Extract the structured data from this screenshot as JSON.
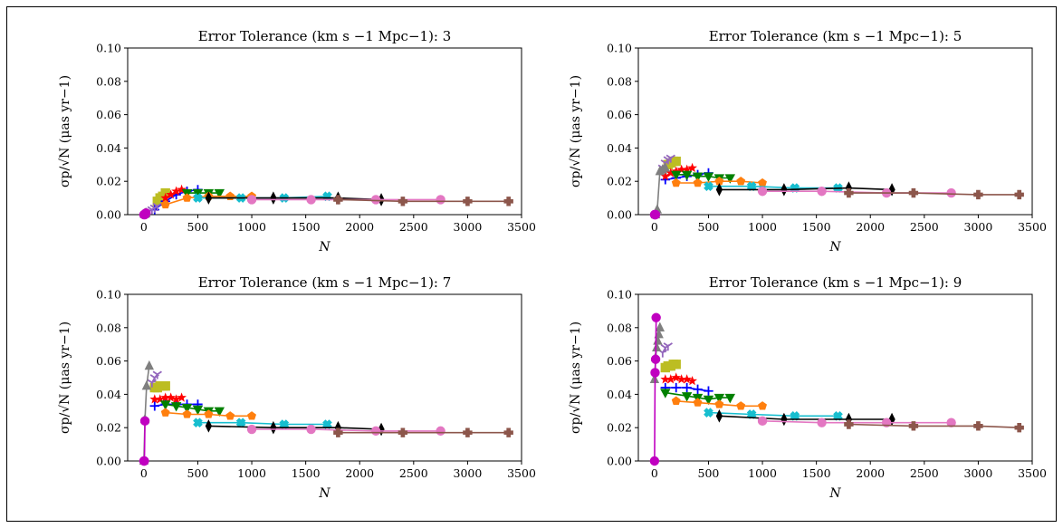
{
  "chart_data": [
    {
      "type": "line",
      "title": "Error Tolerance (km s −1 Mpc−1): 3",
      "xlabel": "N",
      "ylabel": "σp/√N (μas yr−1)",
      "xlim": [
        -150,
        3500
      ],
      "ylim": [
        0,
        0.1
      ],
      "xticks": [
        "0",
        "500",
        "1000",
        "1500",
        "2000",
        "2500",
        "3000",
        "3500"
      ],
      "yticks": [
        "0.00",
        "0.02",
        "0.04",
        "0.06",
        "0.08",
        "0.10"
      ],
      "series": [
        {
          "color": "#bcbd22",
          "marker": "square",
          "x": [
            125,
            150,
            175,
            200
          ],
          "y": [
            0.008,
            0.01,
            0.011,
            0.013
          ]
        },
        {
          "color": "#0000ff",
          "marker": "plus",
          "x": [
            100,
            200,
            300,
            400,
            500
          ],
          "y": [
            0.003,
            0.008,
            0.012,
            0.014,
            0.015
          ]
        },
        {
          "color": "#ff0000",
          "marker": "star",
          "x": [
            200,
            250,
            300,
            350
          ],
          "y": [
            0.01,
            0.012,
            0.014,
            0.015
          ]
        },
        {
          "color": "#9467bd",
          "marker": "tri_down",
          "x": [
            25,
            50,
            75,
            100,
            125
          ],
          "y": [
            0.001,
            0.002,
            0.003,
            0.004,
            0.005
          ]
        },
        {
          "color": "#008000",
          "marker": "triangle_down",
          "x": [
            400,
            500,
            600,
            700
          ],
          "y": [
            0.013,
            0.013,
            0.013,
            0.013
          ]
        },
        {
          "color": "#ff7f0e",
          "marker": "pentagon",
          "x": [
            200,
            400,
            600,
            800,
            1000
          ],
          "y": [
            0.006,
            0.01,
            0.011,
            0.011,
            0.011
          ]
        },
        {
          "color": "#17becf",
          "marker": "x_filled",
          "x": [
            500,
            900,
            1300,
            1700
          ],
          "y": [
            0.01,
            0.01,
            0.01,
            0.011
          ]
        },
        {
          "color": "#000000",
          "marker": "diamond",
          "x": [
            600,
            1200,
            1800,
            2200
          ],
          "y": [
            0.01,
            0.01,
            0.01,
            0.009
          ]
        },
        {
          "color": "#7f7f7f",
          "marker": "triangle_up",
          "x": [
            5,
            10,
            15,
            20
          ],
          "y": [
            0.0003,
            0.0005,
            0.0007,
            0.001
          ]
        },
        {
          "color": "#e377c2",
          "marker": "circle",
          "x": [
            1000,
            1550,
            2150,
            2750
          ],
          "y": [
            0.009,
            0.009,
            0.009,
            0.009
          ]
        },
        {
          "color": "#c000c0",
          "marker": "circle",
          "x": [
            0,
            10,
            20
          ],
          "y": [
            0.0,
            0.0,
            0.001
          ]
        },
        {
          "color": "#8c564b",
          "marker": "plus_filled",
          "x": [
            1800,
            2400,
            3000,
            3380
          ],
          "y": [
            0.009,
            0.008,
            0.008,
            0.008
          ]
        }
      ]
    },
    {
      "type": "line",
      "title": "Error Tolerance (km s −1 Mpc−1): 5",
      "xlabel": "N",
      "ylabel": "σp/√N (μas yr−1)",
      "xlim": [
        -150,
        3500
      ],
      "ylim": [
        0,
        0.1
      ],
      "xticks": [
        "0",
        "500",
        "1000",
        "1500",
        "2000",
        "2500",
        "3000",
        "3500"
      ],
      "yticks": [
        "0.00",
        "0.02",
        "0.04",
        "0.06",
        "0.08",
        "0.10"
      ],
      "series": [
        {
          "color": "#bcbd22",
          "marker": "square",
          "x": [
            125,
            150,
            175,
            200
          ],
          "y": [
            0.03,
            0.031,
            0.032,
            0.032
          ]
        },
        {
          "color": "#0000ff",
          "marker": "plus",
          "x": [
            100,
            200,
            300,
            400,
            500
          ],
          "y": [
            0.021,
            0.022,
            0.023,
            0.024,
            0.025
          ]
        },
        {
          "color": "#ff0000",
          "marker": "star",
          "x": [
            100,
            150,
            200,
            250,
            300,
            350
          ],
          "y": [
            0.023,
            0.025,
            0.026,
            0.027,
            0.027,
            0.028
          ]
        },
        {
          "color": "#9467bd",
          "marker": "tri_down",
          "x": [
            75,
            100,
            125,
            150
          ],
          "y": [
            0.028,
            0.031,
            0.033,
            0.034
          ]
        },
        {
          "color": "#008000",
          "marker": "triangle_down",
          "x": [
            200,
            300,
            400,
            500,
            600,
            700
          ],
          "y": [
            0.024,
            0.024,
            0.023,
            0.023,
            0.022,
            0.022
          ]
        },
        {
          "color": "#ff7f0e",
          "marker": "pentagon",
          "x": [
            200,
            400,
            600,
            800,
            1000
          ],
          "y": [
            0.019,
            0.019,
            0.02,
            0.02,
            0.019
          ]
        },
        {
          "color": "#17becf",
          "marker": "x_filled",
          "x": [
            500,
            900,
            1300,
            1700
          ],
          "y": [
            0.017,
            0.017,
            0.016,
            0.016
          ]
        },
        {
          "color": "#000000",
          "marker": "diamond",
          "x": [
            600,
            1200,
            1800,
            2200
          ],
          "y": [
            0.015,
            0.015,
            0.016,
            0.015
          ]
        },
        {
          "color": "#7f7f7f",
          "marker": "triangle_up",
          "x": [
            10,
            25,
            50,
            75,
            100
          ],
          "y": [
            0.0,
            0.003,
            0.026,
            0.027,
            0.028
          ]
        },
        {
          "color": "#e377c2",
          "marker": "circle",
          "x": [
            1000,
            1550,
            2150,
            2750
          ],
          "y": [
            0.014,
            0.014,
            0.013,
            0.013
          ]
        },
        {
          "color": "#c000c0",
          "marker": "circle",
          "x": [
            0,
            5,
            10
          ],
          "y": [
            0.0,
            0.0,
            0.0
          ]
        },
        {
          "color": "#8c564b",
          "marker": "plus_filled",
          "x": [
            1800,
            2400,
            3000,
            3380
          ],
          "y": [
            0.013,
            0.013,
            0.012,
            0.012
          ]
        }
      ]
    },
    {
      "type": "line",
      "title": "Error Tolerance (km s −1 Mpc−1): 7",
      "xlabel": "N",
      "ylabel": "σp/√N (μas yr−1)",
      "xlim": [
        -150,
        3500
      ],
      "ylim": [
        0,
        0.1
      ],
      "xticks": [
        "0",
        "500",
        "1000",
        "1500",
        "2000",
        "2500",
        "3000",
        "3500"
      ],
      "yticks": [
        "0.00",
        "0.02",
        "0.04",
        "0.06",
        "0.08",
        "0.10"
      ],
      "series": [
        {
          "color": "#bcbd22",
          "marker": "square",
          "x": [
            100,
            125,
            150,
            175,
            200
          ],
          "y": [
            0.044,
            0.044,
            0.045,
            0.045,
            0.045
          ]
        },
        {
          "color": "#0000ff",
          "marker": "plus",
          "x": [
            100,
            200,
            300,
            400,
            500
          ],
          "y": [
            0.033,
            0.034,
            0.034,
            0.034,
            0.034
          ]
        },
        {
          "color": "#ff0000",
          "marker": "star",
          "x": [
            100,
            150,
            200,
            250,
            300,
            350
          ],
          "y": [
            0.037,
            0.037,
            0.038,
            0.038,
            0.037,
            0.038
          ]
        },
        {
          "color": "#9467bd",
          "marker": "tri_down",
          "x": [
            75,
            100,
            125
          ],
          "y": [
            0.047,
            0.05,
            0.052
          ]
        },
        {
          "color": "#008000",
          "marker": "triangle_down",
          "x": [
            200,
            300,
            400,
            500,
            600,
            700
          ],
          "y": [
            0.034,
            0.033,
            0.032,
            0.031,
            0.03,
            0.03
          ]
        },
        {
          "color": "#ff7f0e",
          "marker": "pentagon",
          "x": [
            200,
            400,
            600,
            800,
            1000
          ],
          "y": [
            0.029,
            0.028,
            0.028,
            0.027,
            0.027
          ]
        },
        {
          "color": "#17becf",
          "marker": "x_filled",
          "x": [
            500,
            900,
            1300,
            1700
          ],
          "y": [
            0.023,
            0.023,
            0.022,
            0.022
          ]
        },
        {
          "color": "#000000",
          "marker": "diamond",
          "x": [
            600,
            1200,
            1800,
            2200
          ],
          "y": [
            0.021,
            0.02,
            0.02,
            0.019
          ]
        },
        {
          "color": "#7f7f7f",
          "marker": "triangle_up",
          "x": [
            0,
            10,
            25,
            50
          ],
          "y": [
            0.0,
            0.025,
            0.045,
            0.057
          ]
        },
        {
          "color": "#e377c2",
          "marker": "circle",
          "x": [
            1000,
            1550,
            2150,
            2750
          ],
          "y": [
            0.019,
            0.019,
            0.018,
            0.018
          ]
        },
        {
          "color": "#c000c0",
          "marker": "circle",
          "x": [
            0,
            5,
            10
          ],
          "y": [
            0.0,
            0.0,
            0.024
          ]
        },
        {
          "color": "#8c564b",
          "marker": "plus_filled",
          "x": [
            1800,
            2400,
            3000,
            3380
          ],
          "y": [
            0.017,
            0.017,
            0.017,
            0.017
          ]
        }
      ]
    },
    {
      "type": "line",
      "title": "Error Tolerance (km s −1 Mpc−1): 9",
      "xlabel": "N",
      "ylabel": "σp/√N (μas yr−1)",
      "xlim": [
        -150,
        3500
      ],
      "ylim": [
        0,
        0.1
      ],
      "xticks": [
        "0",
        "500",
        "1000",
        "1500",
        "2000",
        "2500",
        "3000",
        "3500"
      ],
      "yticks": [
        "0.00",
        "0.02",
        "0.04",
        "0.06",
        "0.08",
        "0.10"
      ],
      "series": [
        {
          "color": "#bcbd22",
          "marker": "square",
          "x": [
            100,
            125,
            150,
            175,
            200
          ],
          "y": [
            0.056,
            0.057,
            0.057,
            0.058,
            0.058
          ]
        },
        {
          "color": "#0000ff",
          "marker": "plus",
          "x": [
            100,
            200,
            300,
            400,
            500
          ],
          "y": [
            0.044,
            0.044,
            0.044,
            0.043,
            0.042
          ]
        },
        {
          "color": "#ff0000",
          "marker": "star",
          "x": [
            100,
            150,
            200,
            250,
            300,
            350
          ],
          "y": [
            0.049,
            0.049,
            0.05,
            0.049,
            0.049,
            0.048
          ]
        },
        {
          "color": "#9467bd",
          "marker": "tri_down",
          "x": [
            75,
            100,
            125
          ],
          "y": [
            0.065,
            0.068,
            0.069
          ]
        },
        {
          "color": "#008000",
          "marker": "triangle_down",
          "x": [
            100,
            300,
            400,
            500,
            600,
            700
          ],
          "y": [
            0.041,
            0.039,
            0.038,
            0.037,
            0.038,
            0.038
          ]
        },
        {
          "color": "#ff7f0e",
          "marker": "pentagon",
          "x": [
            200,
            400,
            600,
            800,
            1000
          ],
          "y": [
            0.036,
            0.035,
            0.034,
            0.033,
            0.033
          ]
        },
        {
          "color": "#17becf",
          "marker": "x_filled",
          "x": [
            500,
            900,
            1300,
            1700
          ],
          "y": [
            0.029,
            0.028,
            0.027,
            0.027
          ]
        },
        {
          "color": "#000000",
          "marker": "diamond",
          "x": [
            600,
            1200,
            1800,
            2200
          ],
          "y": [
            0.027,
            0.025,
            0.025,
            0.025
          ]
        },
        {
          "color": "#7f7f7f",
          "marker": "triangle_up",
          "x": [
            0,
            10,
            20,
            30,
            40,
            50
          ],
          "y": [
            0.049,
            0.062,
            0.068,
            0.072,
            0.076,
            0.08
          ]
        },
        {
          "color": "#e377c2",
          "marker": "circle",
          "x": [
            1000,
            1550,
            2150,
            2750
          ],
          "y": [
            0.024,
            0.023,
            0.023,
            0.023
          ]
        },
        {
          "color": "#c000c0",
          "marker": "circle",
          "x": [
            0,
            5,
            10,
            15
          ],
          "y": [
            0.0,
            0.053,
            0.061,
            0.086
          ]
        },
        {
          "color": "#8c564b",
          "marker": "plus_filled",
          "x": [
            1800,
            2400,
            3000,
            3380
          ],
          "y": [
            0.022,
            0.021,
            0.021,
            0.02
          ]
        }
      ]
    }
  ]
}
